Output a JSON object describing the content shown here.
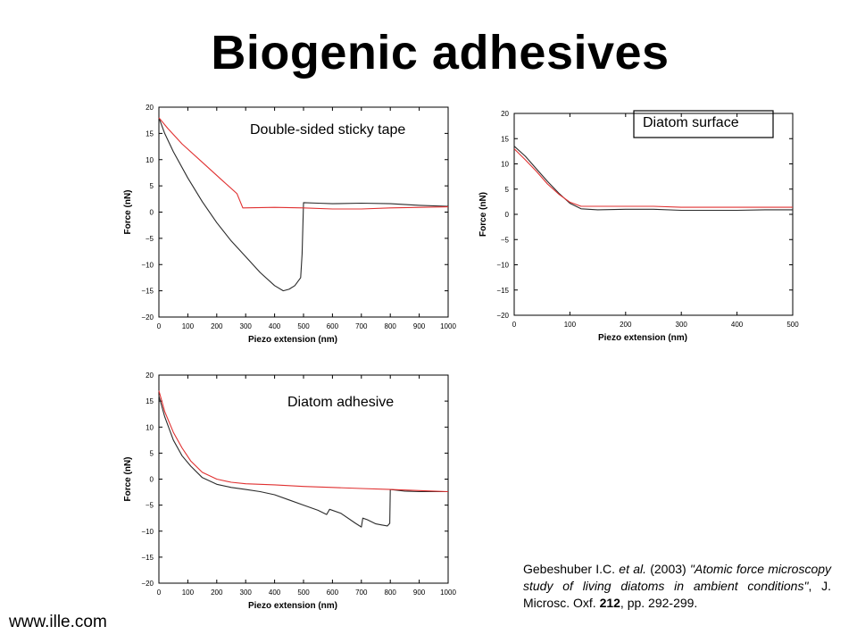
{
  "title": "Biogenic adhesives",
  "citation": {
    "authors": "Gebeshuber I.C.",
    "etal": "et al.",
    "year": "(2003)",
    "paper_title": "\"Atomic force microscopy study of living diatoms in ambient conditions\"",
    "journal": ", J. Microsc. Oxf.",
    "volume": "212",
    "pages": ", pp. 292-299."
  },
  "website": "www.ille.com",
  "colors": {
    "approach": "#2b2b2b",
    "retract": "#e03030",
    "frame": "#000000"
  },
  "chart_data": [
    {
      "id": "tape",
      "type": "line",
      "title": "Double-sided sticky tape",
      "xlabel": "Piezo extension (nm)",
      "ylabel": "Force (nN)",
      "xlim": [
        0,
        1000
      ],
      "ylim": [
        -20,
        20
      ],
      "xticks": [
        0,
        100,
        200,
        300,
        400,
        500,
        600,
        700,
        800,
        900,
        1000
      ],
      "yticks": [
        20,
        15,
        10,
        5,
        0,
        -5,
        -10,
        -15,
        -20
      ],
      "legend_box": false,
      "series": [
        {
          "color": "black",
          "points": [
            [
              0,
              18
            ],
            [
              20,
              15
            ],
            [
              50,
              11.5
            ],
            [
              100,
              6.5
            ],
            [
              150,
              2
            ],
            [
              200,
              -2
            ],
            [
              250,
              -5.5
            ],
            [
              300,
              -8.5
            ],
            [
              350,
              -11.5
            ],
            [
              400,
              -14
            ],
            [
              430,
              -15
            ],
            [
              450,
              -14.7
            ],
            [
              470,
              -14
            ],
            [
              490,
              -12.5
            ],
            [
              495,
              -8
            ],
            [
              500,
              1.8
            ],
            [
              550,
              1.7
            ],
            [
              600,
              1.6
            ],
            [
              700,
              1.7
            ],
            [
              800,
              1.6
            ],
            [
              900,
              1.3
            ],
            [
              1000,
              1.1
            ]
          ]
        },
        {
          "color": "red",
          "points": [
            [
              0,
              18
            ],
            [
              30,
              16
            ],
            [
              80,
              13
            ],
            [
              150,
              9.5
            ],
            [
              220,
              6
            ],
            [
              270,
              3.5
            ],
            [
              290,
              0.8
            ],
            [
              400,
              0.9
            ],
            [
              500,
              0.8
            ],
            [
              600,
              0.6
            ],
            [
              700,
              0.6
            ],
            [
              800,
              0.8
            ],
            [
              900,
              0.9
            ],
            [
              1000,
              1.0
            ]
          ]
        }
      ]
    },
    {
      "id": "surface",
      "type": "line",
      "title": "Diatom surface",
      "xlabel": "Piezo extension (nm)",
      "ylabel": "Force (nN)",
      "xlim": [
        0,
        500
      ],
      "ylim": [
        -20,
        20
      ],
      "xticks": [
        0,
        100,
        200,
        300,
        400,
        500
      ],
      "yticks": [
        20,
        15,
        10,
        5,
        0,
        -5,
        -10,
        -15,
        -20
      ],
      "legend_box": true,
      "series": [
        {
          "color": "black",
          "points": [
            [
              0,
              13.5
            ],
            [
              20,
              11.5
            ],
            [
              40,
              9
            ],
            [
              60,
              6.5
            ],
            [
              80,
              4.2
            ],
            [
              100,
              2.2
            ],
            [
              120,
              1.1
            ],
            [
              150,
              0.9
            ],
            [
              200,
              1.0
            ],
            [
              250,
              1.0
            ],
            [
              300,
              0.8
            ],
            [
              350,
              0.8
            ],
            [
              400,
              0.8
            ],
            [
              450,
              0.9
            ],
            [
              500,
              0.9
            ]
          ]
        },
        {
          "color": "red",
          "points": [
            [
              0,
              13
            ],
            [
              20,
              10.8
            ],
            [
              40,
              8.5
            ],
            [
              60,
              6
            ],
            [
              80,
              4
            ],
            [
              100,
              2.4
            ],
            [
              120,
              1.6
            ],
            [
              150,
              1.6
            ],
            [
              200,
              1.6
            ],
            [
              250,
              1.6
            ],
            [
              300,
              1.4
            ],
            [
              350,
              1.4
            ],
            [
              400,
              1.4
            ],
            [
              450,
              1.4
            ],
            [
              500,
              1.4
            ]
          ]
        }
      ]
    },
    {
      "id": "adhesive",
      "type": "line",
      "title": "Diatom adhesive",
      "xlabel": "Piezo extension (nm)",
      "ylabel": "Force (nN)",
      "xlim": [
        0,
        1000
      ],
      "ylim": [
        -20,
        20
      ],
      "xticks": [
        0,
        100,
        200,
        300,
        400,
        500,
        600,
        700,
        800,
        900,
        1000
      ],
      "yticks": [
        20,
        15,
        10,
        5,
        0,
        -5,
        -10,
        -15,
        -20
      ],
      "legend_box": false,
      "series": [
        {
          "color": "black",
          "points": [
            [
              0,
              16
            ],
            [
              20,
              12
            ],
            [
              50,
              7.5
            ],
            [
              80,
              4.5
            ],
            [
              110,
              2.5
            ],
            [
              150,
              0.3
            ],
            [
              200,
              -1
            ],
            [
              250,
              -1.6
            ],
            [
              300,
              -2
            ],
            [
              350,
              -2.4
            ],
            [
              400,
              -3
            ],
            [
              450,
              -4
            ],
            [
              500,
              -5
            ],
            [
              550,
              -6
            ],
            [
              580,
              -6.8
            ],
            [
              590,
              -5.8
            ],
            [
              630,
              -6.6
            ],
            [
              680,
              -8.5
            ],
            [
              700,
              -9.2
            ],
            [
              705,
              -7.5
            ],
            [
              720,
              -7.8
            ],
            [
              750,
              -8.6
            ],
            [
              770,
              -8.8
            ],
            [
              790,
              -9
            ],
            [
              798,
              -8.5
            ],
            [
              800,
              -2
            ],
            [
              850,
              -2.3
            ],
            [
              900,
              -2.4
            ],
            [
              1000,
              -2.4
            ]
          ]
        },
        {
          "color": "red",
          "points": [
            [
              0,
              17
            ],
            [
              20,
              13
            ],
            [
              50,
              9
            ],
            [
              80,
              6
            ],
            [
              110,
              3.5
            ],
            [
              150,
              1.3
            ],
            [
              200,
              0
            ],
            [
              250,
              -0.6
            ],
            [
              300,
              -0.9
            ],
            [
              400,
              -1.1
            ],
            [
              500,
              -1.4
            ],
            [
              600,
              -1.6
            ],
            [
              700,
              -1.8
            ],
            [
              800,
              -2
            ],
            [
              900,
              -2.2
            ],
            [
              1000,
              -2.4
            ]
          ]
        }
      ]
    }
  ]
}
